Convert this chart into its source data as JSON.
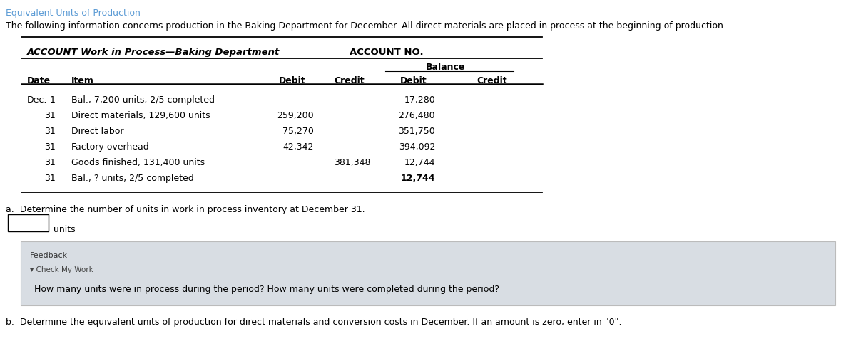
{
  "title": "Equivalent Units of Production",
  "subtitle": "The following information concerns production in the Baking Department for December. All direct materials are placed in process at the beginning of production.",
  "account_header_left": "ACCOUNT Work in Process—Baking Department",
  "account_header_right": "ACCOUNT NO.",
  "balance_header": "Balance",
  "rows": [
    {
      "date": "Dec.",
      "day": "1",
      "item": "Bal., 7,200 units, 2/5 completed",
      "debit": "",
      "credit": "",
      "bal_debit": "17,280",
      "bal_credit": ""
    },
    {
      "date": "",
      "day": "31",
      "item": "Direct materials, 129,600 units",
      "debit": "259,200",
      "credit": "",
      "bal_debit": "276,480",
      "bal_credit": ""
    },
    {
      "date": "",
      "day": "31",
      "item": "Direct labor",
      "debit": "75,270",
      "credit": "",
      "bal_debit": "351,750",
      "bal_credit": ""
    },
    {
      "date": "",
      "day": "31",
      "item": "Factory overhead",
      "debit": "42,342",
      "credit": "",
      "bal_debit": "394,092",
      "bal_credit": ""
    },
    {
      "date": "",
      "day": "31",
      "item": "Goods finished, 131,400 units",
      "debit": "",
      "credit": "381,348",
      "bal_debit": "12,744",
      "bal_credit": ""
    },
    {
      "date": "",
      "day": "31",
      "item": "Bal., ? units, 2/5 completed",
      "debit": "",
      "credit": "",
      "bal_debit": "12,744",
      "bal_credit": ""
    }
  ],
  "question_a": "a.  Determine the number of units in work in process inventory at December 31.",
  "units_label": "units",
  "feedback_label": "Feedback",
  "check_label": "▾ Check My Work",
  "feedback_text": "How many units were in process during the period? How many units were completed during the period?",
  "question_b": "b.  Determine the equivalent units of production for direct materials and conversion costs in December. If an amount is zero, enter in \"0\".",
  "title_color": "#5B9BD5",
  "text_color": "#000000",
  "feedback_bg": "#D8DDE3",
  "line_color": "#000000"
}
